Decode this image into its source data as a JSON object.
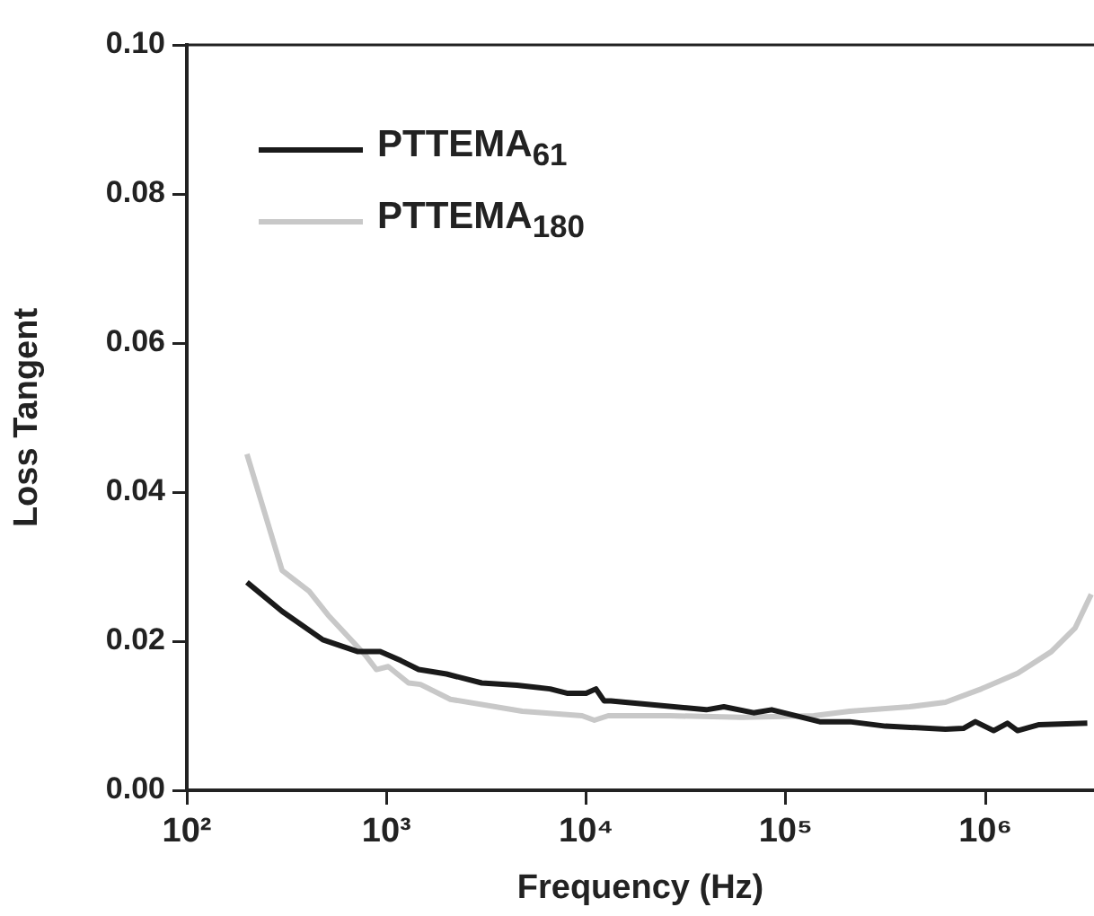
{
  "chart_data": {
    "type": "line",
    "xlabel": "Frequency (Hz)",
    "ylabel": "Loss Tangent",
    "log": "x",
    "xlim": [
      100,
      3500000
    ],
    "ylim": [
      0,
      0.1
    ],
    "xticks": [
      {
        "value": 100,
        "label": "10²"
      },
      {
        "value": 1000,
        "label": "10³"
      },
      {
        "value": 10000,
        "label": "10⁴"
      },
      {
        "value": 100000,
        "label": "10⁵"
      },
      {
        "value": 1000000,
        "label": "10⁶"
      }
    ],
    "yticks": [
      {
        "value": 0,
        "label": "0.00"
      },
      {
        "value": 0.02,
        "label": "0.02"
      },
      {
        "value": 0.04,
        "label": "0.04"
      },
      {
        "value": 0.06,
        "label": "0.06"
      },
      {
        "value": 0.08,
        "label": "0.08"
      },
      {
        "value": 0.1,
        "label": "0.10"
      }
    ],
    "grid": false,
    "legend": "top left",
    "marker": "none",
    "line_style": "solid",
    "series": [
      {
        "name": "PTTEMA$_{61}$",
        "color": "#1a1a1a",
        "x": [
          200,
          300,
          480,
          720,
          930,
          1180,
          1450,
          2000,
          3000,
          4500,
          6600,
          8100,
          10000,
          11200,
          12300,
          13300,
          40000,
          49000,
          69000,
          85000,
          148000,
          209000,
          316000,
          631000,
          776000,
          891000,
          1100000,
          1290000,
          1450000,
          1860000,
          3240000
        ],
        "values": [
          0.0279,
          0.024,
          0.0202,
          0.0186,
          0.0186,
          0.0174,
          0.0162,
          0.0156,
          0.0144,
          0.0141,
          0.0136,
          0.013,
          0.013,
          0.0136,
          0.012,
          0.012,
          0.0108,
          0.0112,
          0.0104,
          0.0108,
          0.0092,
          0.0092,
          0.0086,
          0.0082,
          0.0083,
          0.0092,
          0.008,
          0.009,
          0.008,
          0.0088,
          0.009
        ]
      },
      {
        "name": "PTTEMA$_{180}$",
        "color": "#c8c8c8",
        "x": [
          200,
          300,
          410,
          510,
          780,
          890,
          1020,
          1290,
          1480,
          2090,
          4790,
          9550,
          11000,
          12900,
          26300,
          60300,
          138000,
          209000,
          417000,
          631000,
          955000,
          1450000,
          2140000,
          2820000,
          3390000
        ],
        "values": [
          0.0451,
          0.0295,
          0.0267,
          0.0235,
          0.0182,
          0.0162,
          0.0166,
          0.0144,
          0.0142,
          0.0122,
          0.0106,
          0.01,
          0.0094,
          0.01,
          0.01,
          0.0098,
          0.01,
          0.0106,
          0.0112,
          0.0118,
          0.0136,
          0.0157,
          0.0186,
          0.0218,
          0.0263
        ]
      }
    ]
  }
}
